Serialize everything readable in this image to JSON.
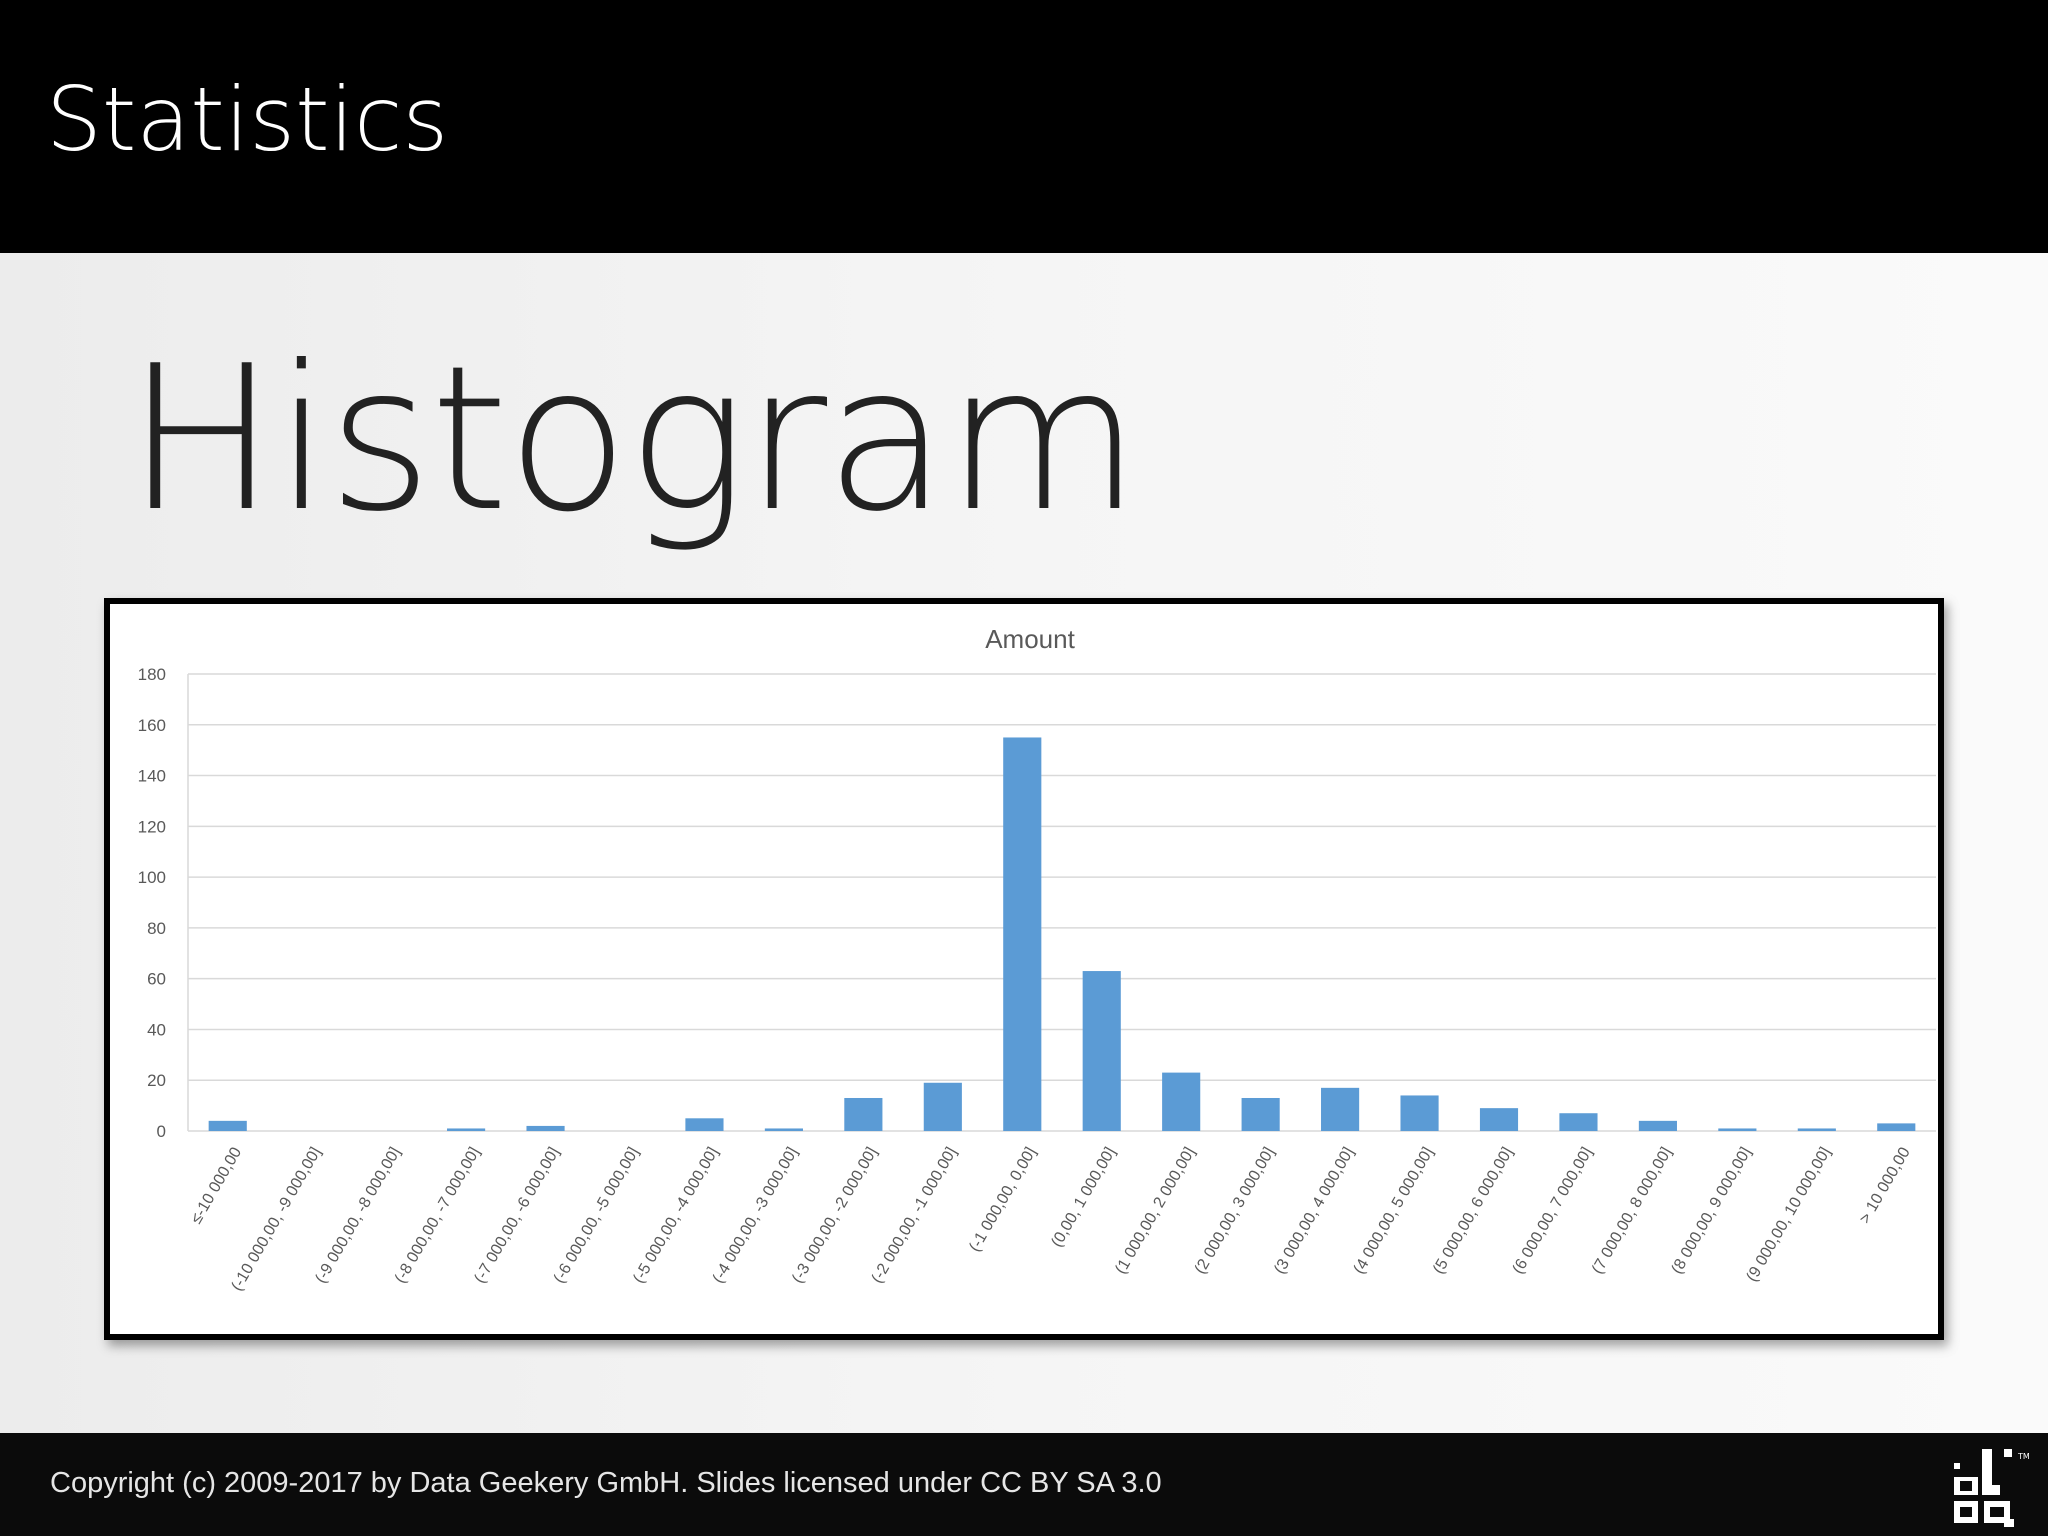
{
  "header": {
    "title": "Statistics"
  },
  "slide": {
    "title": "Histogram"
  },
  "footer": {
    "copyright": "Copyright (c) 2009-2017 by Data Geekery GmbH. Slides licensed under CC BY SA 3.0"
  },
  "logo": {
    "icon": "jooq-logo-icon"
  },
  "colors": {
    "bar": "#5b9bd5",
    "grid": "#d9d9d9",
    "header_bg": "#000000",
    "footer_bg": "#0b0b0b"
  },
  "chart_data": {
    "type": "bar",
    "title": "Amount",
    "xlabel": "",
    "ylabel": "",
    "ylim": [
      0,
      180
    ],
    "yticks": [
      0,
      20,
      40,
      60,
      80,
      100,
      120,
      140,
      160,
      180
    ],
    "grid": true,
    "legend": "none",
    "categories": [
      "≤-10 000,00",
      "(-10 000,00, -9 000,00]",
      "(-9 000,00, -8 000,00]",
      "(-8 000,00, -7 000,00]",
      "(-7 000,00, -6 000,00]",
      "(-6 000,00, -5 000,00]",
      "(-5 000,00, -4 000,00]",
      "(-4 000,00, -3 000,00]",
      "(-3 000,00, -2 000,00]",
      "(-2 000,00, -1 000,00]",
      "(-1 000,00, 0,00]",
      "(0,00, 1 000,00]",
      "(1 000,00, 2 000,00]",
      "(2 000,00, 3 000,00]",
      "(3 000,00, 4 000,00]",
      "(4 000,00, 5 000,00]",
      "(5 000,00, 6 000,00]",
      "(6 000,00, 7 000,00]",
      "(7 000,00, 8 000,00]",
      "(8 000,00, 9 000,00]",
      "(9 000,00, 10 000,00]",
      "> 10 000,00"
    ],
    "values": [
      4,
      0,
      0,
      1,
      2,
      0,
      5,
      1,
      13,
      19,
      155,
      63,
      23,
      13,
      17,
      14,
      9,
      7,
      4,
      1,
      1,
      3
    ]
  }
}
